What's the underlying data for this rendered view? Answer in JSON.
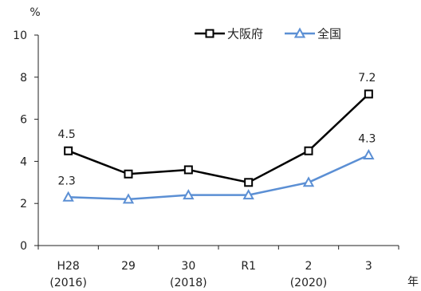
{
  "chart_data": {
    "type": "line",
    "y_unit": "%",
    "x_unit": "年",
    "ylim": [
      0,
      10
    ],
    "yticks": [
      0,
      2,
      4,
      6,
      8,
      10
    ],
    "grid": false,
    "legend_position": "top-right",
    "categories": [
      {
        "line1": "H28",
        "line2": "(2016)"
      },
      {
        "line1": "29",
        "line2": ""
      },
      {
        "line1": "30",
        "line2": "(2018)"
      },
      {
        "line1": "R1",
        "line2": ""
      },
      {
        "line1": "2",
        "line2": "(2020)"
      },
      {
        "line1": "3",
        "line2": ""
      }
    ],
    "series": [
      {
        "name": "大阪府",
        "color": "#000000",
        "marker": "square",
        "values": [
          4.5,
          3.4,
          3.6,
          3.0,
          4.5,
          7.2
        ],
        "labels": [
          "4.5",
          "",
          "",
          "",
          "",
          "7.2"
        ]
      },
      {
        "name": "全国",
        "color": "#5b8fd4",
        "marker": "triangle",
        "values": [
          2.3,
          2.2,
          2.4,
          2.4,
          3.0,
          4.3
        ],
        "labels": [
          "2.3",
          "",
          "",
          "",
          "",
          "4.3"
        ]
      }
    ]
  }
}
